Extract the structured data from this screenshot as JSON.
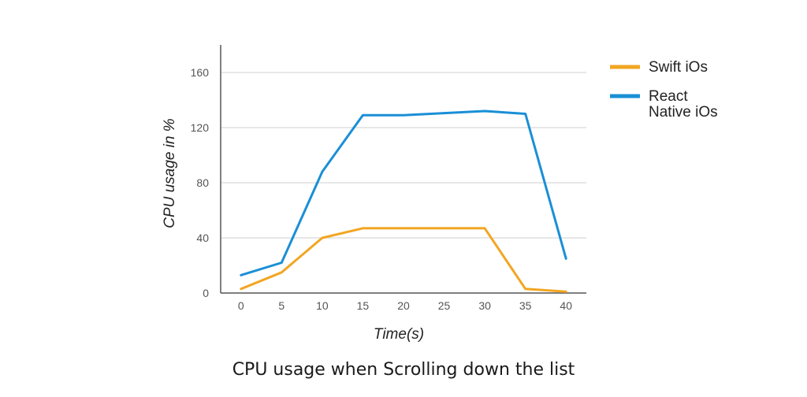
{
  "chart_data": {
    "type": "line",
    "title": "CPU usage when Scrolling down the list",
    "xlabel": "Time(s)",
    "ylabel": "CPU usage in %",
    "x": [
      0,
      5,
      10,
      15,
      20,
      25,
      30,
      35,
      40
    ],
    "x_tick_labels": [
      "0",
      "5",
      "10",
      "15",
      "20",
      "25",
      "30",
      "35",
      "40"
    ],
    "y_ticks": [
      0,
      40,
      80,
      120,
      160
    ],
    "y_tick_labels": [
      "0",
      "40",
      "80",
      "120",
      "160"
    ],
    "xlim": [
      -2.5,
      42.5
    ],
    "ylim": [
      0,
      180
    ],
    "grid": true,
    "legend_position": "right",
    "series": [
      {
        "name": "Swift iOs",
        "legend_lines": [
          "Swift iOs"
        ],
        "color": "#F2A623",
        "values": [
          3,
          15,
          40,
          47,
          47,
          47,
          47,
          3,
          1
        ]
      },
      {
        "name": "React Native iOs",
        "legend_lines": [
          "React",
          "Native iOs"
        ],
        "color": "#1A8FD6",
        "values": [
          13,
          22,
          88,
          129,
          129,
          130.5,
          132,
          130,
          25
        ]
      }
    ]
  }
}
